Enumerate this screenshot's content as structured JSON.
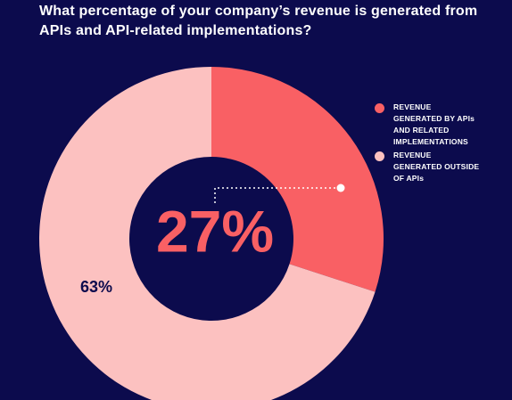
{
  "chart_data": {
    "type": "donut",
    "title": "What percentage of your company’s revenue is generated from APIs and API-related implementations?",
    "categories": [
      "REVENUE GENERATED BY APIs AND RELATED IMPLEMENTATIONS",
      "REVENUE GENERATED OUTSIDE OF APIs"
    ],
    "values": [
      27,
      63
    ],
    "value_labels": [
      "27%",
      "63%"
    ],
    "colors": [
      "#f96064",
      "#fcc1c0"
    ]
  }
}
